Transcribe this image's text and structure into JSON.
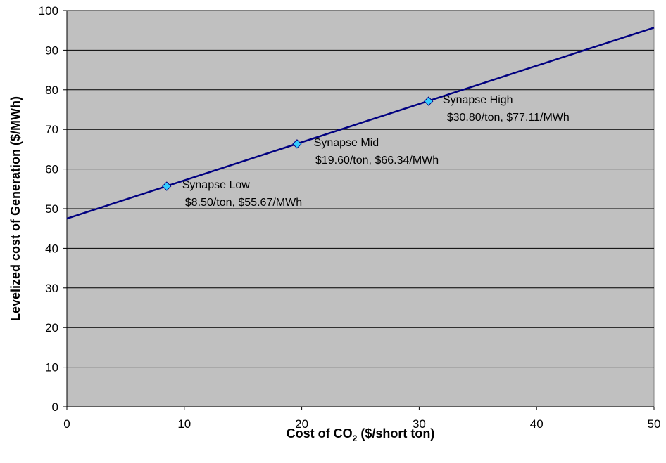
{
  "chart_data": {
    "type": "line",
    "title": "",
    "xlabel_prefix": "Cost of CO",
    "xlabel_sub": "2",
    "xlabel_suffix": " ($/short ton)",
    "ylabel": "Levelized cost of Generation ($/MWh)",
    "xlim": [
      0,
      50
    ],
    "ylim": [
      0,
      100
    ],
    "x_ticks": [
      0,
      10,
      20,
      30,
      40,
      50
    ],
    "y_ticks": [
      0,
      10,
      20,
      30,
      40,
      50,
      60,
      70,
      80,
      90,
      100
    ],
    "grid": "horizontal",
    "plot_background": "#c0c0c0",
    "series": [
      {
        "color": "#000080",
        "x": [
          0,
          50
        ],
        "y": [
          47.5,
          95.7
        ]
      }
    ],
    "points": [
      {
        "x": 8.5,
        "y": 55.67,
        "color": "#33ccff",
        "label_line1": "Synapse Low",
        "label_line2": "$8.50/ton, $55.67/MWh"
      },
      {
        "x": 19.6,
        "y": 66.34,
        "color": "#33ccff",
        "label_line1": "Synapse Mid",
        "label_line2": "$19.60/ton, $66.34/MWh"
      },
      {
        "x": 30.8,
        "y": 77.11,
        "color": "#33ccff",
        "label_line1": "Synapse High",
        "label_line2": "$30.80/ton, $77.11/MWh"
      }
    ]
  }
}
